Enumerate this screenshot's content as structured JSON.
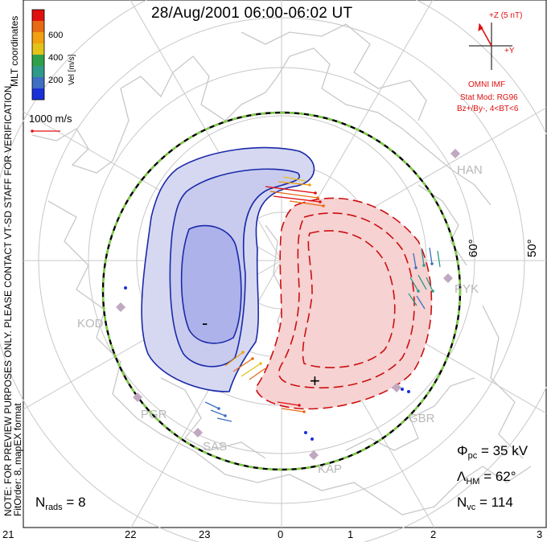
{
  "title": "28/Aug/2001 06:00-06:02 UT",
  "colorbar": {
    "unit_label": "Vel [m/s]",
    "ticks": [
      "600",
      "400",
      "200"
    ],
    "colors": [
      "#1a2fd8",
      "#3f6ec2",
      "#2f9a8a",
      "#2ea04a",
      "#e3c21a",
      "#f0a010",
      "#e86a12",
      "#e01010"
    ]
  },
  "coordinate_label": "MLT coordinates",
  "side_note": "NOTE: FOR PREVIEW PURPOSES ONLY. PLEASE CONTACT VT-SD STAFF FOR VERIFICATION.",
  "fit_note": "FitOrder: 8, mapEX format",
  "scale_vector": "1000 m/s",
  "imf": {
    "z_label": "+Z (5 nT)",
    "y_label": "+Y",
    "source": "OMNI IMF",
    "model": "Stat Mod: RG96",
    "condition": "Bz+/By-, 4<BT<6"
  },
  "latitude_labels": [
    "60°",
    "50°"
  ],
  "radars": [
    "HAN",
    "PYK",
    "KOD",
    "PGR",
    "SAS",
    "KAP",
    "GBR"
  ],
  "cells": {
    "negative": "-",
    "positive": "+"
  },
  "stats": {
    "phi_pc": {
      "symbol": "Φ",
      "sub": "pc",
      "value": "= 35 kV"
    },
    "lambda_hm": {
      "symbol": "Λ",
      "sub": "HM",
      "value": "= 62°"
    },
    "n_vc": {
      "symbol": "N",
      "sub": "vc",
      "value": "= 114"
    },
    "n_rads": {
      "symbol": "N",
      "sub": "rads",
      "value": "= 8"
    }
  },
  "mlt_labels": [
    "21",
    "22",
    "23",
    "0",
    "1",
    "2",
    "3"
  ],
  "colors": {
    "negative_contour": "#1a2aa8",
    "positive_contour": "#cc1010",
    "negative_fill": "#d6d8f2",
    "negative_core_fill": "#aeb2ea",
    "positive_fill": "#f6d2d2",
    "coast": "#c8c8c8",
    "grid": "#c8c8c8",
    "hmb_dash": "#7ed040",
    "radar_symbol": "#c0a8c0"
  }
}
